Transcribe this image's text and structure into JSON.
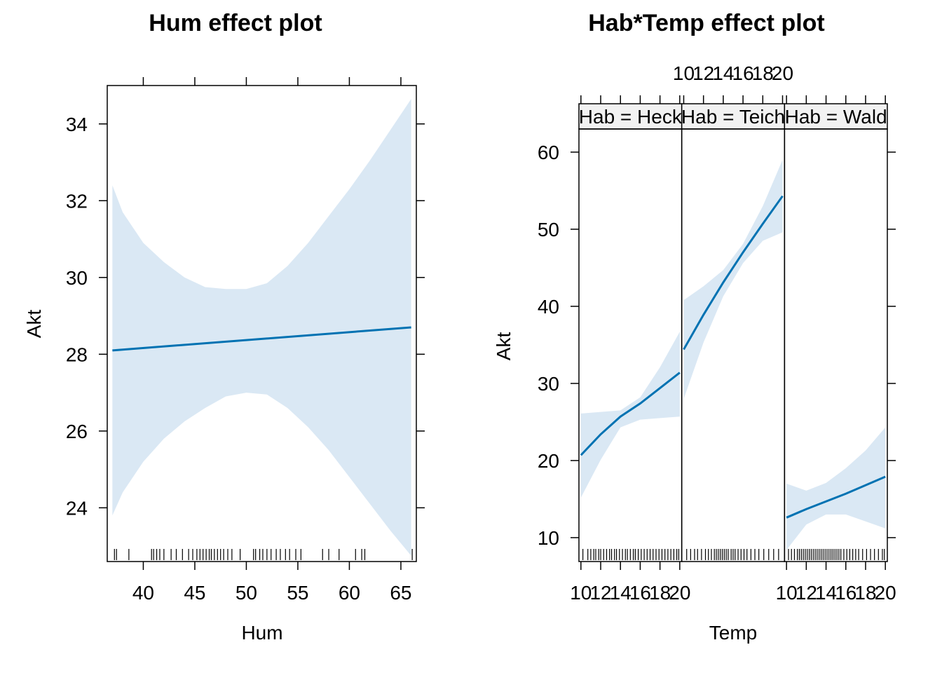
{
  "colors": {
    "line": "#0072B2",
    "band": "#DAE8F4",
    "strip": "#F2F2F2",
    "axis": "#000000"
  },
  "chart_data": [
    {
      "type": "line",
      "title": "Hum effect plot",
      "xlabel": "Hum",
      "ylabel": "Akt",
      "xlim": [
        36.5,
        66.5
      ],
      "ylim": [
        22.6,
        35.0
      ],
      "x_ticks": [
        40,
        45,
        50,
        55,
        60,
        65
      ],
      "y_ticks": [
        24,
        26,
        28,
        30,
        32,
        34
      ],
      "series": [
        {
          "x": [
            37,
            66
          ],
          "y": [
            28.1,
            28.7
          ]
        }
      ],
      "band": {
        "x": [
          37,
          38,
          40,
          42,
          44,
          46,
          48,
          50,
          52,
          54,
          56,
          58,
          60,
          62,
          64,
          66
        ],
        "upper": [
          32.4,
          31.7,
          30.9,
          30.4,
          30.0,
          29.75,
          29.7,
          29.7,
          29.85,
          30.3,
          30.9,
          31.6,
          32.3,
          33.05,
          33.85,
          34.65
        ],
        "lower": [
          23.8,
          24.4,
          25.2,
          25.8,
          26.25,
          26.6,
          26.9,
          27.0,
          26.95,
          26.6,
          26.1,
          25.5,
          24.8,
          24.1,
          23.4,
          22.75
        ]
      },
      "rug": [
        37.2,
        37.4,
        38.6,
        40.8,
        41.0,
        41.3,
        41.6,
        42.0,
        42.7,
        43.2,
        43.8,
        44.4,
        44.8,
        45.2,
        45.5,
        45.8,
        46.1,
        46.4,
        46.6,
        46.9,
        47.2,
        47.5,
        47.8,
        48.2,
        48.6,
        49.4,
        50.7,
        50.9,
        51.3,
        51.6,
        52.0,
        52.4,
        52.9,
        53.3,
        53.8,
        54.2,
        54.8,
        55.3,
        57.4,
        58.0,
        59.0,
        60.6,
        61.2,
        61.5,
        66.1
      ]
    },
    {
      "type": "line",
      "title": "Hab*Temp effect plot",
      "xlabel": "Temp",
      "ylabel": "Akt",
      "xlim": [
        9.8,
        20.2
      ],
      "ylim": [
        6.9,
        63.0
      ],
      "x_tick_labels": [
        "10",
        "12",
        "14",
        "16",
        "18",
        "20"
      ],
      "x_ticks": [
        10,
        12,
        14,
        16,
        18,
        20
      ],
      "y_ticks": [
        10,
        20,
        30,
        40,
        50,
        60
      ],
      "panels": [
        {
          "strip": "Hab = Heck",
          "series": [
            {
              "x": [
                10,
                12,
                14,
                16,
                18,
                20
              ],
              "y": [
                20.7,
                23.4,
                25.7,
                27.4,
                29.4,
                31.4
              ]
            }
          ],
          "band": {
            "x": [
              10,
              12,
              14,
              16,
              18,
              20
            ],
            "upper": [
              26.1,
              26.3,
              26.5,
              28.2,
              32.1,
              36.7
            ],
            "lower": [
              15.2,
              20.1,
              24.3,
              25.3,
              25.5,
              25.7
            ]
          },
          "rug": [
            10.2,
            10.7,
            11.0,
            11.3,
            11.5,
            11.8,
            12.0,
            12.3,
            12.6,
            12.9,
            13.1,
            13.4,
            13.6,
            13.9,
            14.2,
            14.5,
            14.7,
            15.0,
            15.3,
            15.5,
            15.8,
            16.1,
            16.4,
            16.7,
            17.0,
            17.3,
            17.6,
            17.9,
            18.2,
            18.5,
            18.8,
            19.1,
            19.4,
            19.7,
            19.9
          ]
        },
        {
          "strip": "Hab = Teich",
          "series": [
            {
              "x": [
                10,
                12,
                14,
                16,
                18,
                20
              ],
              "y": [
                34.4,
                38.9,
                43.1,
                47.0,
                50.7,
                54.3
              ]
            }
          ],
          "band": {
            "x": [
              10,
              12,
              14,
              16,
              18,
              20
            ],
            "upper": [
              40.8,
              42.6,
              44.7,
              48.1,
              53.0,
              59.0
            ],
            "lower": [
              28.0,
              35.3,
              41.3,
              45.6,
              48.5,
              49.6
            ]
          },
          "rug": [
            10.3,
            10.7,
            11.1,
            11.4,
            11.8,
            12.2,
            12.5,
            12.8,
            13.1,
            13.3,
            13.5,
            13.7,
            13.9,
            14.1,
            14.3,
            14.5,
            14.8,
            15.0,
            15.2,
            15.5,
            15.8,
            16.1,
            16.4,
            16.8,
            17.2,
            17.6,
            18.1,
            18.6,
            19.1,
            19.6
          ]
        },
        {
          "strip": "Hab = Wald",
          "series": [
            {
              "x": [
                10,
                12,
                14,
                16,
                18,
                20
              ],
              "y": [
                12.6,
                13.7,
                14.7,
                15.7,
                16.8,
                17.9
              ]
            }
          ],
          "band": {
            "x": [
              10,
              12,
              14,
              16,
              18,
              20
            ],
            "upper": [
              17.0,
              16.1,
              17.1,
              19.0,
              21.3,
              24.3
            ],
            "lower": [
              8.4,
              11.7,
              13.0,
              13.0,
              12.1,
              11.2
            ]
          },
          "rug": [
            10.2,
            10.5,
            10.8,
            11.1,
            11.3,
            11.5,
            11.7,
            11.9,
            12.1,
            12.3,
            12.5,
            12.7,
            12.9,
            13.1,
            13.3,
            13.5,
            13.7,
            13.9,
            14.1,
            14.3,
            14.5,
            14.7,
            14.9,
            15.1,
            15.3,
            15.5,
            15.8,
            16.1,
            16.4,
            16.7,
            17.0,
            17.3,
            17.7,
            18.1,
            18.5,
            18.9,
            19.3,
            19.7,
            19.9
          ]
        }
      ]
    }
  ]
}
